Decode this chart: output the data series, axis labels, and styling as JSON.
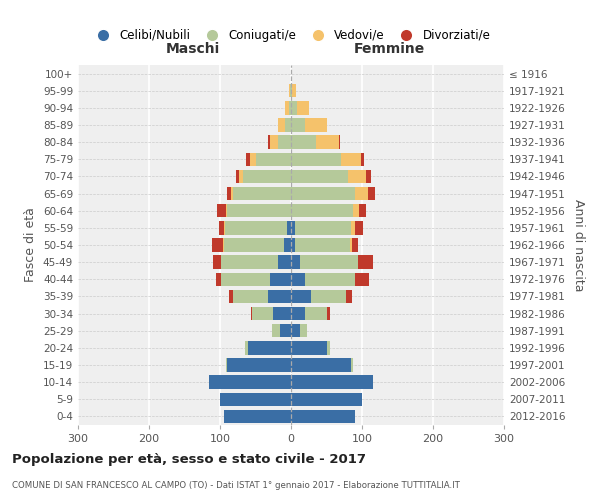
{
  "age_groups": [
    "0-4",
    "5-9",
    "10-14",
    "15-19",
    "20-24",
    "25-29",
    "30-34",
    "35-39",
    "40-44",
    "45-49",
    "50-54",
    "55-59",
    "60-64",
    "65-69",
    "70-74",
    "75-79",
    "80-84",
    "85-89",
    "90-94",
    "95-99",
    "100+"
  ],
  "birth_years": [
    "2012-2016",
    "2007-2011",
    "2002-2006",
    "1997-2001",
    "1992-1996",
    "1987-1991",
    "1982-1986",
    "1977-1981",
    "1972-1976",
    "1967-1971",
    "1962-1966",
    "1957-1961",
    "1952-1956",
    "1947-1951",
    "1942-1946",
    "1937-1941",
    "1932-1936",
    "1927-1931",
    "1922-1926",
    "1917-1921",
    "≤ 1916"
  ],
  "maschi": {
    "celibi": [
      95,
      100,
      115,
      90,
      60,
      15,
      25,
      32,
      30,
      18,
      10,
      5,
      0,
      0,
      0,
      0,
      0,
      0,
      0,
      0,
      0
    ],
    "coniugati": [
      0,
      0,
      0,
      2,
      5,
      12,
      30,
      50,
      68,
      80,
      85,
      88,
      90,
      82,
      68,
      50,
      18,
      8,
      3,
      2,
      0
    ],
    "vedovi": [
      0,
      0,
      0,
      0,
      0,
      0,
      0,
      0,
      0,
      0,
      1,
      1,
      2,
      3,
      5,
      8,
      12,
      10,
      5,
      1,
      0
    ],
    "divorziati": [
      0,
      0,
      0,
      0,
      0,
      0,
      2,
      5,
      8,
      12,
      15,
      8,
      12,
      5,
      5,
      5,
      2,
      0,
      0,
      0,
      0
    ]
  },
  "femmine": {
    "nubili": [
      90,
      100,
      115,
      85,
      50,
      12,
      20,
      28,
      20,
      12,
      5,
      5,
      0,
      0,
      0,
      0,
      0,
      0,
      0,
      0,
      0
    ],
    "coniugate": [
      0,
      0,
      0,
      2,
      5,
      10,
      30,
      50,
      70,
      82,
      78,
      80,
      88,
      90,
      80,
      70,
      35,
      20,
      8,
      2,
      0
    ],
    "vedove": [
      0,
      0,
      0,
      0,
      0,
      0,
      0,
      0,
      0,
      0,
      3,
      5,
      8,
      18,
      25,
      28,
      32,
      30,
      18,
      5,
      0
    ],
    "divorziate": [
      0,
      0,
      0,
      0,
      0,
      0,
      5,
      8,
      20,
      22,
      8,
      12,
      10,
      10,
      8,
      5,
      2,
      0,
      0,
      0,
      0
    ]
  },
  "colors": {
    "celibi": "#3A6EA5",
    "coniugati": "#B5C99A",
    "vedovi": "#F5C26B",
    "divorziati": "#C0392B"
  },
  "title": "Popolazione per età, sesso e stato civile - 2017",
  "subtitle": "COMUNE DI SAN FRANCESCO AL CAMPO (TO) - Dati ISTAT 1° gennaio 2017 - Elaborazione TUTTITALIA.IT",
  "maschi_label": "Maschi",
  "femmine_label": "Femmine",
  "ylabel_left": "Fasce di età",
  "ylabel_right": "Anni di nascita",
  "xlim": 300,
  "xticks": [
    -300,
    -200,
    -100,
    0,
    100,
    200,
    300
  ],
  "legend_labels": [
    "Celibi/Nubili",
    "Coniugati/e",
    "Vedovi/e",
    "Divorziati/e"
  ],
  "bg_color": "#ffffff",
  "plot_bg": "#efefef"
}
